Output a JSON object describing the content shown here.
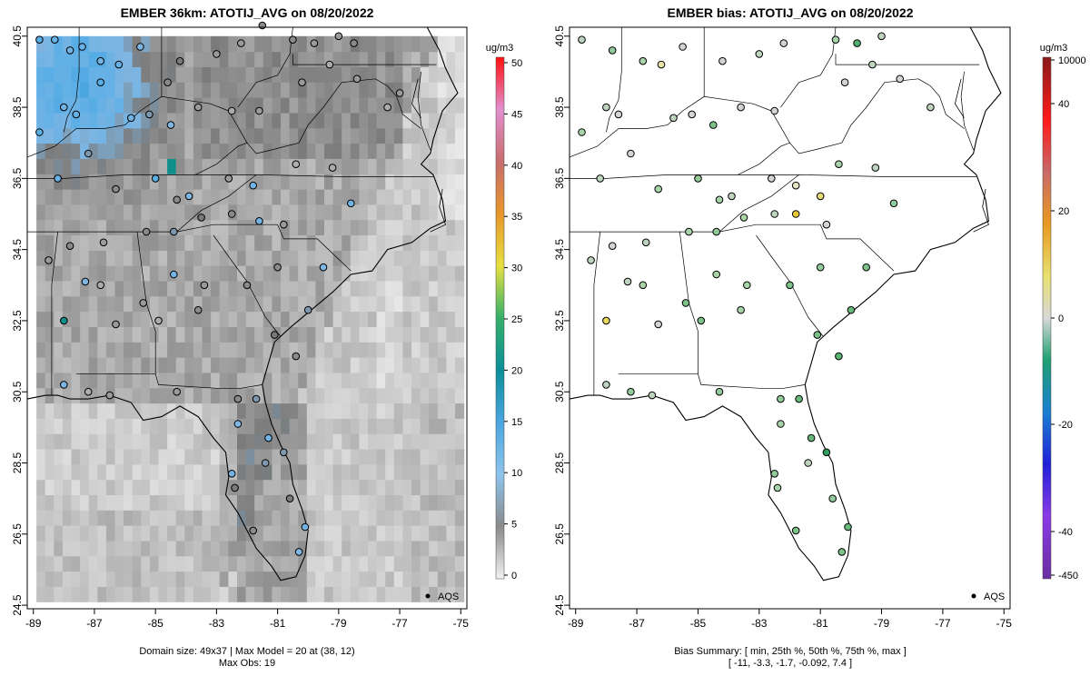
{
  "chart_data": [
    {
      "type": "heatmap",
      "title": "EMBER 36km: ATOTIJ_AVG on 08/20/2022",
      "x_ticks": [
        -89,
        -87,
        -85,
        -83,
        -81,
        -79,
        -77,
        -75
      ],
      "y_ticks": [
        24.5,
        26.5,
        28.5,
        30.5,
        32.5,
        34.5,
        36.5,
        38.5,
        40.5
      ],
      "xlim": [
        -89.2,
        -74.8
      ],
      "ylim": [
        24.4,
        40.75
      ],
      "colorbar": {
        "unit": "ug/m3",
        "ticks": [
          0,
          5,
          10,
          15,
          20,
          25,
          30,
          35,
          40,
          45,
          50
        ],
        "range": [
          0,
          50
        ]
      },
      "legend": "AQS",
      "footer_line1": "Domain size: 49x37 | Max Model = 20 at (38, 12)",
      "footer_line2": "Max Obs: 19",
      "observations": [
        {
          "lon": -88.8,
          "lat": 40.4,
          "v": 12
        },
        {
          "lon": -88.3,
          "lat": 40.4,
          "v": 11
        },
        {
          "lon": -87.8,
          "lat": 40.1,
          "v": 10
        },
        {
          "lon": -87.4,
          "lat": 40.2,
          "v": 11
        },
        {
          "lon": -86.8,
          "lat": 39.8,
          "v": 10
        },
        {
          "lon": -86.2,
          "lat": 39.7,
          "v": 11
        },
        {
          "lon": -85.5,
          "lat": 40.2,
          "v": 9
        },
        {
          "lon": -84.6,
          "lat": 39.2,
          "v": 6
        },
        {
          "lon": -84.2,
          "lat": 39.8,
          "v": 7
        },
        {
          "lon": -83.0,
          "lat": 40.0,
          "v": 5
        },
        {
          "lon": -82.2,
          "lat": 40.3,
          "v": 5
        },
        {
          "lon": -81.5,
          "lat": 40.8,
          "v": 6
        },
        {
          "lon": -80.5,
          "lat": 40.4,
          "v": 6
        },
        {
          "lon": -79.8,
          "lat": 40.3,
          "v": 5
        },
        {
          "lon": -79.0,
          "lat": 40.5,
          "v": 5
        },
        {
          "lon": -78.5,
          "lat": 40.3,
          "v": 6
        },
        {
          "lon": -88.0,
          "lat": 38.5,
          "v": 10
        },
        {
          "lon": -87.6,
          "lat": 38.3,
          "v": 11
        },
        {
          "lon": -86.8,
          "lat": 39.2,
          "v": 12
        },
        {
          "lon": -85.8,
          "lat": 38.2,
          "v": 10
        },
        {
          "lon": -85.2,
          "lat": 38.3,
          "v": 8
        },
        {
          "lon": -84.5,
          "lat": 38.0,
          "v": 9
        },
        {
          "lon": -83.6,
          "lat": 38.5,
          "v": 5
        },
        {
          "lon": -82.5,
          "lat": 38.4,
          "v": 4
        },
        {
          "lon": -81.6,
          "lat": 38.4,
          "v": 5
        },
        {
          "lon": -80.2,
          "lat": 39.2,
          "v": 5
        },
        {
          "lon": -79.3,
          "lat": 39.7,
          "v": 4
        },
        {
          "lon": -78.4,
          "lat": 39.3,
          "v": 5
        },
        {
          "lon": -77.4,
          "lat": 38.5,
          "v": 4
        },
        {
          "lon": -77.0,
          "lat": 38.9,
          "v": 5
        },
        {
          "lon": -88.8,
          "lat": 37.8,
          "v": 12
        },
        {
          "lon": -88.2,
          "lat": 36.5,
          "v": 11
        },
        {
          "lon": -87.2,
          "lat": 37.2,
          "v": 8
        },
        {
          "lon": -86.3,
          "lat": 36.2,
          "v": 6
        },
        {
          "lon": -85.0,
          "lat": 36.5,
          "v": 12
        },
        {
          "lon": -84.3,
          "lat": 35.9,
          "v": 6
        },
        {
          "lon": -83.9,
          "lat": 36.0,
          "v": 9
        },
        {
          "lon": -82.6,
          "lat": 36.5,
          "v": 5
        },
        {
          "lon": -81.8,
          "lat": 36.3,
          "v": 10
        },
        {
          "lon": -80.4,
          "lat": 36.9,
          "v": 4
        },
        {
          "lon": -79.2,
          "lat": 36.8,
          "v": 4
        },
        {
          "lon": -78.6,
          "lat": 35.8,
          "v": 10
        },
        {
          "lon": -80.8,
          "lat": 35.2,
          "v": 5
        },
        {
          "lon": -81.6,
          "lat": 35.3,
          "v": 10
        },
        {
          "lon": -82.5,
          "lat": 35.5,
          "v": 6
        },
        {
          "lon": -83.5,
          "lat": 35.4,
          "v": 7
        },
        {
          "lon": -84.4,
          "lat": 35.0,
          "v": 8
        },
        {
          "lon": -85.3,
          "lat": 35.0,
          "v": 6
        },
        {
          "lon": -86.7,
          "lat": 34.7,
          "v": 5
        },
        {
          "lon": -87.8,
          "lat": 34.6,
          "v": 6
        },
        {
          "lon": -88.5,
          "lat": 34.2,
          "v": 5
        },
        {
          "lon": -87.3,
          "lat": 33.6,
          "v": 9
        },
        {
          "lon": -86.8,
          "lat": 33.5,
          "v": 4
        },
        {
          "lon": -85.4,
          "lat": 33.0,
          "v": 5
        },
        {
          "lon": -84.4,
          "lat": 33.8,
          "v": 10
        },
        {
          "lon": -83.4,
          "lat": 33.5,
          "v": 5
        },
        {
          "lon": -82.0,
          "lat": 33.5,
          "v": 6
        },
        {
          "lon": -81.0,
          "lat": 34.0,
          "v": 6
        },
        {
          "lon": -80.0,
          "lat": 32.8,
          "v": 8
        },
        {
          "lon": -79.5,
          "lat": 34.0,
          "v": 9
        },
        {
          "lon": -88.0,
          "lat": 32.5,
          "v": 19
        },
        {
          "lon": -86.3,
          "lat": 32.4,
          "v": 5
        },
        {
          "lon": -84.9,
          "lat": 32.5,
          "v": 4
        },
        {
          "lon": -83.6,
          "lat": 32.8,
          "v": 6
        },
        {
          "lon": -81.1,
          "lat": 32.1,
          "v": 7
        },
        {
          "lon": -80.4,
          "lat": 31.5,
          "v": 6
        },
        {
          "lon": -88.0,
          "lat": 30.7,
          "v": 9
        },
        {
          "lon": -87.2,
          "lat": 30.5,
          "v": 4
        },
        {
          "lon": -86.5,
          "lat": 30.4,
          "v": 5
        },
        {
          "lon": -84.3,
          "lat": 30.5,
          "v": 5
        },
        {
          "lon": -82.3,
          "lat": 30.3,
          "v": 6
        },
        {
          "lon": -81.7,
          "lat": 30.3,
          "v": 8
        },
        {
          "lon": -82.3,
          "lat": 29.6,
          "v": 9
        },
        {
          "lon": -81.3,
          "lat": 29.2,
          "v": 10
        },
        {
          "lon": -82.5,
          "lat": 28.2,
          "v": 10
        },
        {
          "lon": -81.4,
          "lat": 28.5,
          "v": 8
        },
        {
          "lon": -82.4,
          "lat": 27.8,
          "v": 7
        },
        {
          "lon": -81.8,
          "lat": 26.6,
          "v": 6
        },
        {
          "lon": -80.6,
          "lat": 27.5,
          "v": 7
        },
        {
          "lon": -80.1,
          "lat": 26.7,
          "v": 10
        },
        {
          "lon": -80.3,
          "lat": 26.0,
          "v": 9
        },
        {
          "lon": -80.8,
          "lat": 28.8,
          "v": 8
        }
      ]
    },
    {
      "type": "scatter",
      "title": "EMBER bias: ATOTIJ_AVG on 08/20/2022",
      "x_ticks": [
        -89,
        -87,
        -85,
        -83,
        -81,
        -79,
        -77,
        -75
      ],
      "y_ticks": [
        24.5,
        26.5,
        28.5,
        30.5,
        32.5,
        34.5,
        36.5,
        38.5,
        40.5
      ],
      "xlim": [
        -89.2,
        -74.8
      ],
      "ylim": [
        24.4,
        40.75
      ],
      "colorbar": {
        "unit": "ug/m3",
        "ticks": [
          "10000",
          "40",
          "20",
          "0",
          "-20",
          "-40",
          "-450"
        ],
        "range": [
          -450,
          10000
        ]
      },
      "legend": "AQS",
      "footer_line1": "Bias Summary: [ min, 25th %, 50th %, 75th %, max ]",
      "footer_line2": "[ -11,   -3.3,   -1.7,   -0.092,   7.4 ]",
      "observations": [
        {
          "lon": -88.8,
          "lat": 40.4,
          "v": -2
        },
        {
          "lon": -87.8,
          "lat": 40.1,
          "v": -4
        },
        {
          "lon": -86.8,
          "lat": 39.8,
          "v": -3
        },
        {
          "lon": -86.2,
          "lat": 39.7,
          "v": 2
        },
        {
          "lon": -85.5,
          "lat": 40.2,
          "v": -1
        },
        {
          "lon": -84.2,
          "lat": 39.8,
          "v": -1
        },
        {
          "lon": -83.0,
          "lat": 40.0,
          "v": -2
        },
        {
          "lon": -82.2,
          "lat": 40.3,
          "v": -1
        },
        {
          "lon": -80.5,
          "lat": 40.4,
          "v": -3
        },
        {
          "lon": -79.8,
          "lat": 40.3,
          "v": -8
        },
        {
          "lon": -79.0,
          "lat": 40.5,
          "v": -2
        },
        {
          "lon": -88.0,
          "lat": 38.5,
          "v": -2
        },
        {
          "lon": -87.6,
          "lat": 38.3,
          "v": -1
        },
        {
          "lon": -85.8,
          "lat": 38.2,
          "v": -2
        },
        {
          "lon": -85.2,
          "lat": 38.3,
          "v": -1
        },
        {
          "lon": -84.5,
          "lat": 38.0,
          "v": -5
        },
        {
          "lon": -83.6,
          "lat": 38.5,
          "v": -1
        },
        {
          "lon": -82.5,
          "lat": 38.4,
          "v": -1
        },
        {
          "lon": -80.2,
          "lat": 39.2,
          "v": -1
        },
        {
          "lon": -79.3,
          "lat": 39.7,
          "v": -2
        },
        {
          "lon": -78.4,
          "lat": 39.3,
          "v": -1
        },
        {
          "lon": -77.4,
          "lat": 38.5,
          "v": -2
        },
        {
          "lon": -88.8,
          "lat": 37.8,
          "v": -3
        },
        {
          "lon": -88.2,
          "lat": 36.5,
          "v": -2
        },
        {
          "lon": -87.2,
          "lat": 37.2,
          "v": -1
        },
        {
          "lon": -86.3,
          "lat": 36.2,
          "v": -3
        },
        {
          "lon": -85.0,
          "lat": 36.5,
          "v": -4
        },
        {
          "lon": -84.3,
          "lat": 35.9,
          "v": -3
        },
        {
          "lon": -83.9,
          "lat": 36.0,
          "v": -2
        },
        {
          "lon": -82.6,
          "lat": 36.5,
          "v": -1
        },
        {
          "lon": -81.8,
          "lat": 36.3,
          "v": 1
        },
        {
          "lon": -81.0,
          "lat": 36.0,
          "v": 4
        },
        {
          "lon": -80.4,
          "lat": 36.9,
          "v": -3
        },
        {
          "lon": -79.2,
          "lat": 36.8,
          "v": -2
        },
        {
          "lon": -78.6,
          "lat": 35.8,
          "v": -4
        },
        {
          "lon": -80.8,
          "lat": 35.2,
          "v": -1
        },
        {
          "lon": -81.8,
          "lat": 35.5,
          "v": 7.4
        },
        {
          "lon": -82.5,
          "lat": 35.5,
          "v": -2
        },
        {
          "lon": -83.5,
          "lat": 35.4,
          "v": -3
        },
        {
          "lon": -84.4,
          "lat": 35.0,
          "v": -4
        },
        {
          "lon": -85.3,
          "lat": 35.0,
          "v": -3
        },
        {
          "lon": -86.7,
          "lat": 34.7,
          "v": -2
        },
        {
          "lon": -87.8,
          "lat": 34.6,
          "v": -1
        },
        {
          "lon": -88.5,
          "lat": 34.2,
          "v": -2
        },
        {
          "lon": -87.3,
          "lat": 33.6,
          "v": -2
        },
        {
          "lon": -86.8,
          "lat": 33.5,
          "v": -3
        },
        {
          "lon": -85.4,
          "lat": 33.0,
          "v": -5
        },
        {
          "lon": -84.4,
          "lat": 33.8,
          "v": -3
        },
        {
          "lon": -83.4,
          "lat": 33.5,
          "v": -3
        },
        {
          "lon": -82.0,
          "lat": 33.5,
          "v": -5
        },
        {
          "lon": -81.0,
          "lat": 34.0,
          "v": -4
        },
        {
          "lon": -80.0,
          "lat": 32.8,
          "v": -6
        },
        {
          "lon": -79.5,
          "lat": 34.0,
          "v": -5
        },
        {
          "lon": -88.0,
          "lat": 32.5,
          "v": 5
        },
        {
          "lon": -86.3,
          "lat": 32.4,
          "v": -1
        },
        {
          "lon": -84.9,
          "lat": 32.5,
          "v": -5
        },
        {
          "lon": -83.6,
          "lat": 32.8,
          "v": -3
        },
        {
          "lon": -81.1,
          "lat": 32.1,
          "v": -5
        },
        {
          "lon": -80.4,
          "lat": 31.5,
          "v": -7
        },
        {
          "lon": -88.0,
          "lat": 30.7,
          "v": -2
        },
        {
          "lon": -87.2,
          "lat": 30.5,
          "v": -4
        },
        {
          "lon": -86.5,
          "lat": 30.4,
          "v": -2
        },
        {
          "lon": -84.3,
          "lat": 30.5,
          "v": -4
        },
        {
          "lon": -82.3,
          "lat": 30.3,
          "v": -4
        },
        {
          "lon": -81.7,
          "lat": 30.3,
          "v": -6
        },
        {
          "lon": -82.3,
          "lat": 29.6,
          "v": -3
        },
        {
          "lon": -81.3,
          "lat": 29.2,
          "v": -6
        },
        {
          "lon": -82.5,
          "lat": 28.2,
          "v": -4
        },
        {
          "lon": -81.4,
          "lat": 28.5,
          "v": -2
        },
        {
          "lon": -82.4,
          "lat": 27.8,
          "v": -3
        },
        {
          "lon": -81.8,
          "lat": 26.6,
          "v": -5
        },
        {
          "lon": -80.6,
          "lat": 27.5,
          "v": -4
        },
        {
          "lon": -80.1,
          "lat": 26.7,
          "v": -6
        },
        {
          "lon": -80.3,
          "lat": 26.0,
          "v": -5
        },
        {
          "lon": -80.8,
          "lat": 28.8,
          "v": -11
        }
      ]
    }
  ]
}
